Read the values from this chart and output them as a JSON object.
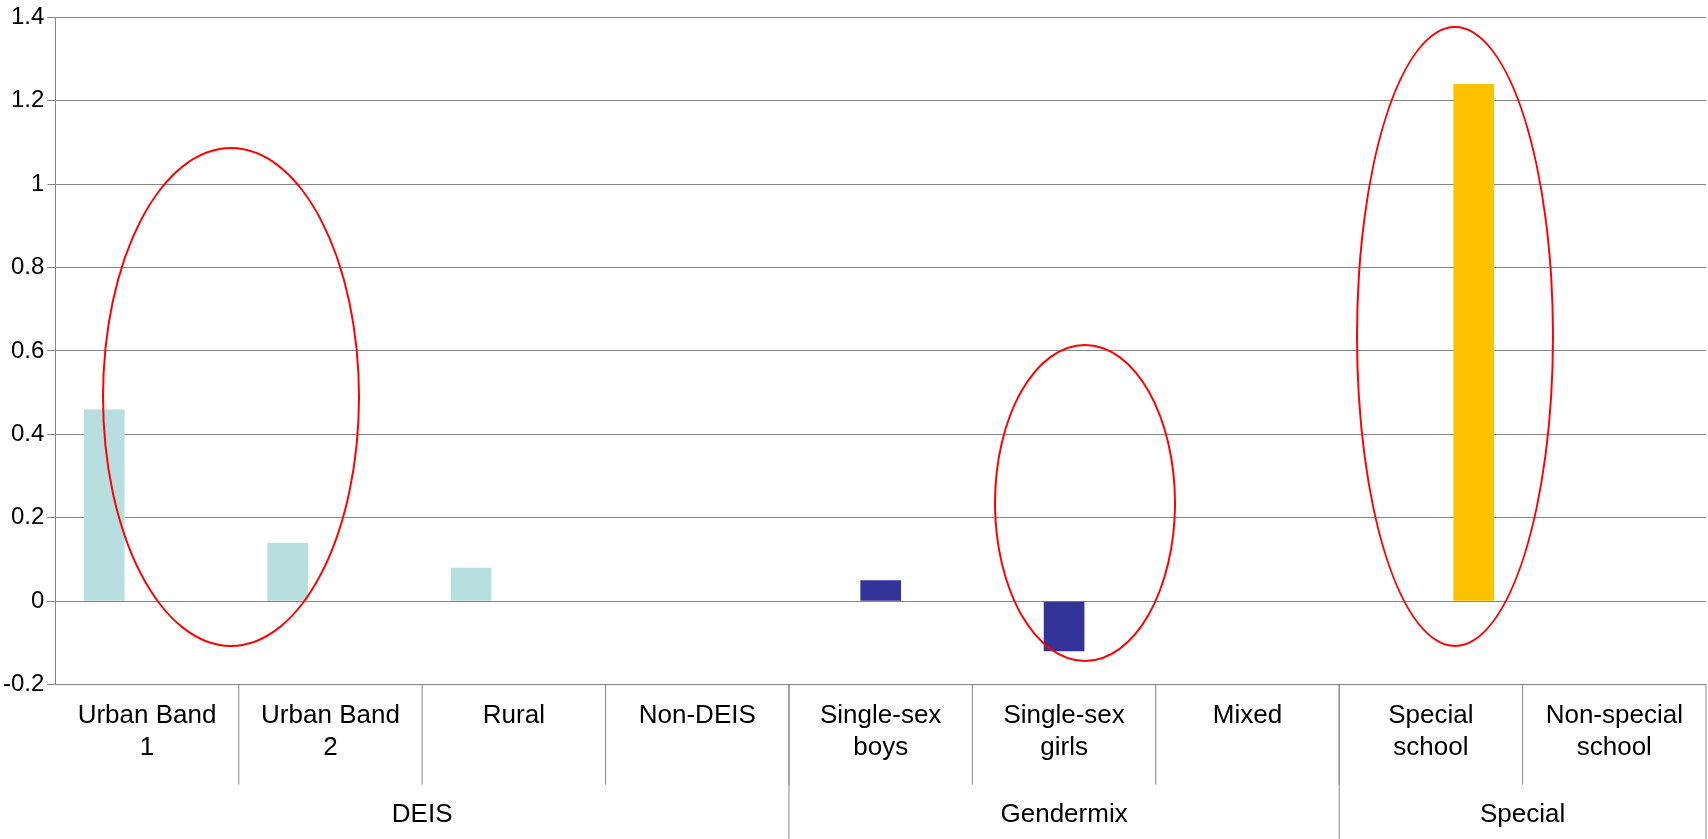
{
  "chart_data": {
    "type": "bar",
    "categories": [
      "Urban Band 1",
      "Urban Band 2",
      "Rural",
      "Non-DEIS",
      "Single-sex boys",
      "Single-sex girls",
      "Mixed",
      "Special school",
      "Non-special school"
    ],
    "series": [
      {
        "color": "#b7dfe0",
        "values": [
          0.46,
          0.14,
          0.08,
          0,
          null,
          null,
          null,
          null,
          null
        ]
      },
      {
        "color": "#333399",
        "values": [
          null,
          null,
          null,
          null,
          0.05,
          -0.12,
          0,
          null,
          null
        ]
      },
      {
        "color": "#ffc000",
        "values": [
          null,
          null,
          null,
          null,
          null,
          null,
          null,
          1.24,
          0
        ]
      }
    ],
    "annotations": [
      "DEIS",
      "Gendermix",
      "Special"
    ],
    "ylim": [
      -0.2,
      1.4
    ],
    "yticks": [
      -0.2,
      0,
      0.2,
      0.4,
      0.6,
      0.8,
      1,
      1.2,
      1.4
    ],
    "grid": "y",
    "legend": false
  }
}
